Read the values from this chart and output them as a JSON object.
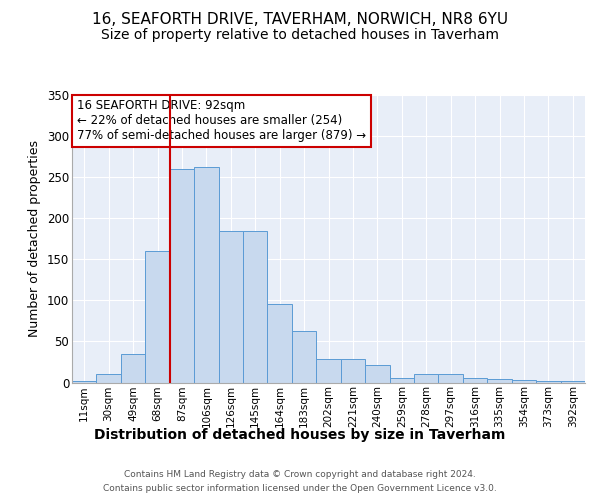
{
  "title1": "16, SEAFORTH DRIVE, TAVERHAM, NORWICH, NR8 6YU",
  "title2": "Size of property relative to detached houses in Taverham",
  "xlabel": "Distribution of detached houses by size in Taverham",
  "ylabel": "Number of detached properties",
  "categories": [
    "11sqm",
    "30sqm",
    "49sqm",
    "68sqm",
    "87sqm",
    "106sqm",
    "126sqm",
    "145sqm",
    "164sqm",
    "183sqm",
    "202sqm",
    "221sqm",
    "240sqm",
    "259sqm",
    "278sqm",
    "297sqm",
    "316sqm",
    "335sqm",
    "354sqm",
    "373sqm",
    "392sqm"
  ],
  "values": [
    2,
    10,
    35,
    160,
    260,
    262,
    185,
    185,
    96,
    63,
    29,
    29,
    21,
    5,
    10,
    10,
    5,
    4,
    3,
    2,
    2
  ],
  "bar_color": "#c8d9ee",
  "bar_edge_color": "#5b9bd5",
  "background_color": "#e8eef8",
  "vline_x_index": 4,
  "vline_color": "#cc0000",
  "annotation_line1": "16 SEAFORTH DRIVE: 92sqm",
  "annotation_line2": "← 22% of detached houses are smaller (254)",
  "annotation_line3": "77% of semi-detached houses are larger (879) →",
  "annotation_box_facecolor": "white",
  "annotation_box_edgecolor": "#cc0000",
  "ylim": [
    0,
    350
  ],
  "yticks": [
    0,
    50,
    100,
    150,
    200,
    250,
    300,
    350
  ],
  "title1_fontsize": 11,
  "title2_fontsize": 10,
  "xlabel_fontsize": 10,
  "ylabel_fontsize": 9,
  "footer1": "Contains HM Land Registry data © Crown copyright and database right 2024.",
  "footer2": "Contains public sector information licensed under the Open Government Licence v3.0."
}
